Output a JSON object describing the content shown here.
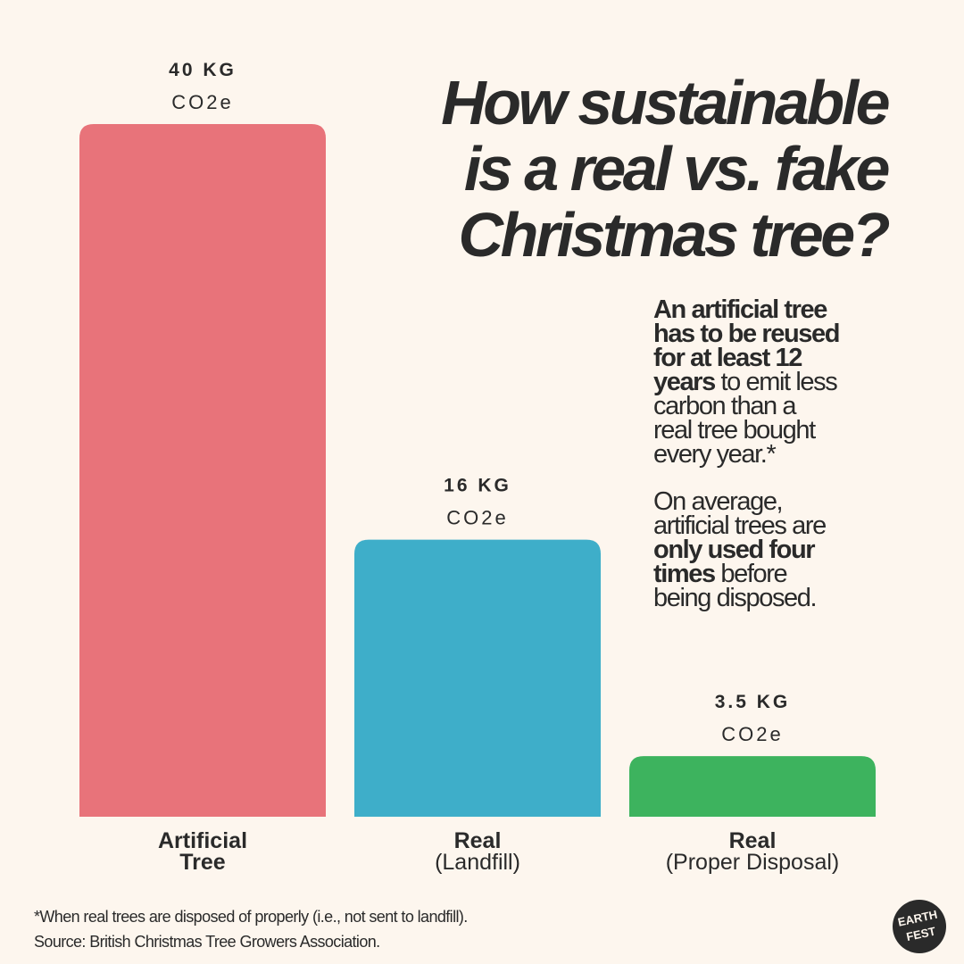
{
  "header": {
    "title_lines": [
      "How sustainable",
      "is a real vs. fake",
      "Christmas tree?"
    ]
  },
  "note": {
    "p1": {
      "bold": [
        "An artificial tree",
        "has to be reused",
        "for at least 12",
        "years"
      ],
      "regular": [
        " to emit less",
        "carbon than a",
        "real tree bought",
        "every year.*"
      ]
    },
    "p2": {
      "lead": [
        "On average,",
        "artificial trees are"
      ],
      "bold": [
        "only used four",
        "times"
      ],
      "tail": [
        " before",
        "being disposed."
      ]
    }
  },
  "footer": {
    "footnote": "*When real trees are disposed of properly (i.e., not sent to landfill).",
    "source": "Source: British Christmas Tree Growers Association."
  },
  "logo": {
    "line1": "EARTH",
    "line2": "FEST"
  },
  "chart_data": {
    "type": "bar",
    "title": "How sustainable is a real vs. fake Christmas tree?",
    "unit": "CO2e",
    "xlabel": "",
    "ylabel": "",
    "ylim": [
      0,
      40
    ],
    "grid": false,
    "bars": [
      {
        "category_lines": [
          "Artificial",
          "Tree"
        ],
        "value": 40,
        "value_label": "40 KG",
        "unit_label": "CO2e",
        "color": "#e8737a"
      },
      {
        "category_lines": [
          "Real",
          "(Landfill)"
        ],
        "value": 16,
        "value_label": "16 KG",
        "unit_label": "CO2e",
        "color": "#3eaec9"
      },
      {
        "category_lines": [
          "Real",
          "(Proper Disposal)"
        ],
        "value": 3.5,
        "value_label": "3.5 KG",
        "unit_label": "CO2e",
        "color": "#3db35e"
      }
    ]
  }
}
